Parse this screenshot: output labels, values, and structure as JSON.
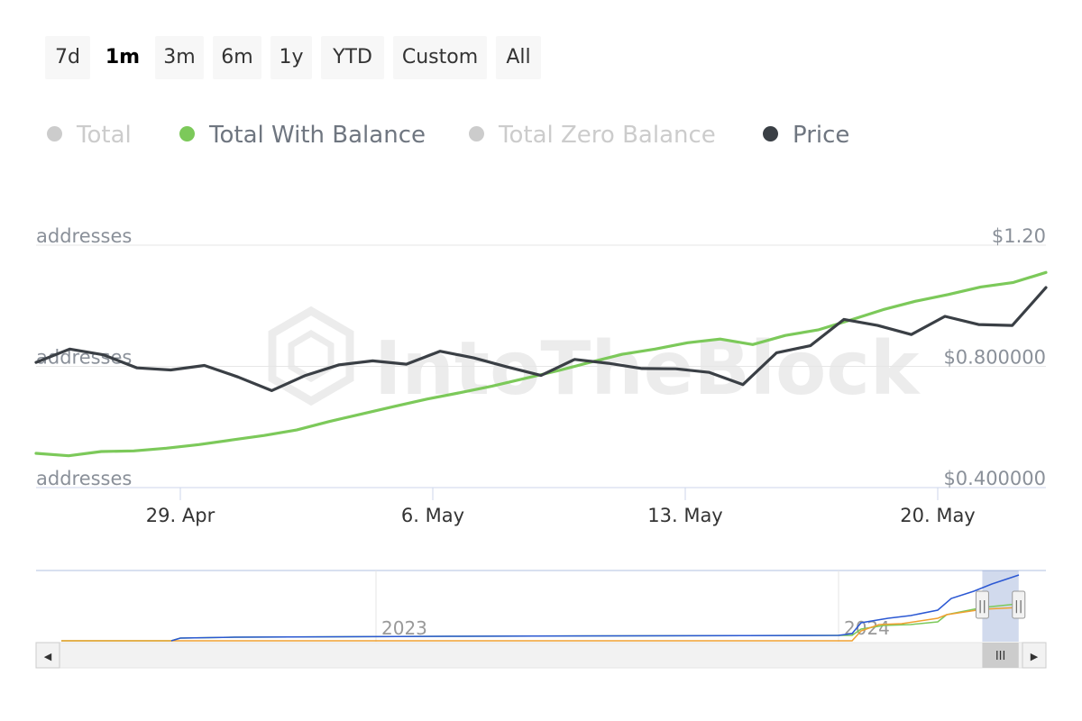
{
  "range_selector": {
    "buttons": [
      {
        "label": "7d",
        "active": false
      },
      {
        "label": "1m",
        "active": true
      },
      {
        "label": "3m",
        "active": false
      },
      {
        "label": "6m",
        "active": false
      },
      {
        "label": "1y",
        "active": false
      },
      {
        "label": "YTD",
        "active": false
      },
      {
        "label": "Custom",
        "active": false
      },
      {
        "label": "All",
        "active": false
      }
    ]
  },
  "legend": {
    "items": [
      {
        "label": "Total",
        "color": "#cccccc",
        "visible": false
      },
      {
        "label": "Total With Balance",
        "color": "#7cc95a",
        "visible": true
      },
      {
        "label": "Total Zero Balance",
        "color": "#cccccc",
        "visible": false
      },
      {
        "label": "Price",
        "color": "#3a3f45",
        "visible": true
      }
    ]
  },
  "watermark": "IntoTheBlock",
  "chart_data": {
    "type": "line",
    "x_tick_labels": [
      "29. Apr",
      "6. May",
      "13. May",
      "20. May"
    ],
    "x_ticks": [
      "2024-04-29",
      "2024-05-06",
      "2024-05-13",
      "2024-05-20"
    ],
    "x_range": [
      "2024-04-25",
      "2024-05-23"
    ],
    "left_axis": {
      "tick_labels": [
        "addresses",
        "addresses",
        "addresses"
      ]
    },
    "right_axis": {
      "tick_labels": [
        "$0.400000",
        "$0.800000",
        "$1.20"
      ],
      "range": [
        0.4,
        1.2
      ]
    },
    "grid": true,
    "series": [
      {
        "name": "Total With Balance",
        "color": "#7cc95a",
        "axis": "left",
        "values": [
          0.513,
          0.505,
          0.519,
          0.521,
          0.53,
          0.542,
          0.557,
          0.572,
          0.59,
          0.618,
          0.643,
          0.668,
          0.692,
          0.713,
          0.735,
          0.76,
          0.785,
          0.813,
          0.84,
          0.857,
          0.878,
          0.89,
          0.872,
          0.902,
          0.92,
          0.953,
          0.987,
          1.015,
          1.037,
          1.062,
          1.077,
          1.11
        ]
      },
      {
        "name": "Price",
        "color": "#3a3f45",
        "axis": "right",
        "values": [
          0.813,
          0.857,
          0.838,
          0.795,
          0.788,
          0.803,
          0.765,
          0.72,
          0.77,
          0.805,
          0.818,
          0.807,
          0.85,
          0.828,
          0.798,
          0.77,
          0.823,
          0.81,
          0.793,
          0.792,
          0.78,
          0.74,
          0.845,
          0.868,
          0.955,
          0.935,
          0.905,
          0.965,
          0.938,
          0.935,
          1.06
        ]
      }
    ]
  },
  "navigator": {
    "year_labels": [
      "2023",
      "2024"
    ],
    "series_colors": {
      "total": "#2b58d3",
      "zero_balance": "#f0a030",
      "with_balance": "#7cc95a"
    },
    "selected_range_fraction": [
      0.937,
      0.973
    ],
    "scroll_thumb_glyph": "III",
    "scroll_left_arrow": "◀",
    "scroll_right_arrow": "▶",
    "handle_glyph": "||"
  }
}
